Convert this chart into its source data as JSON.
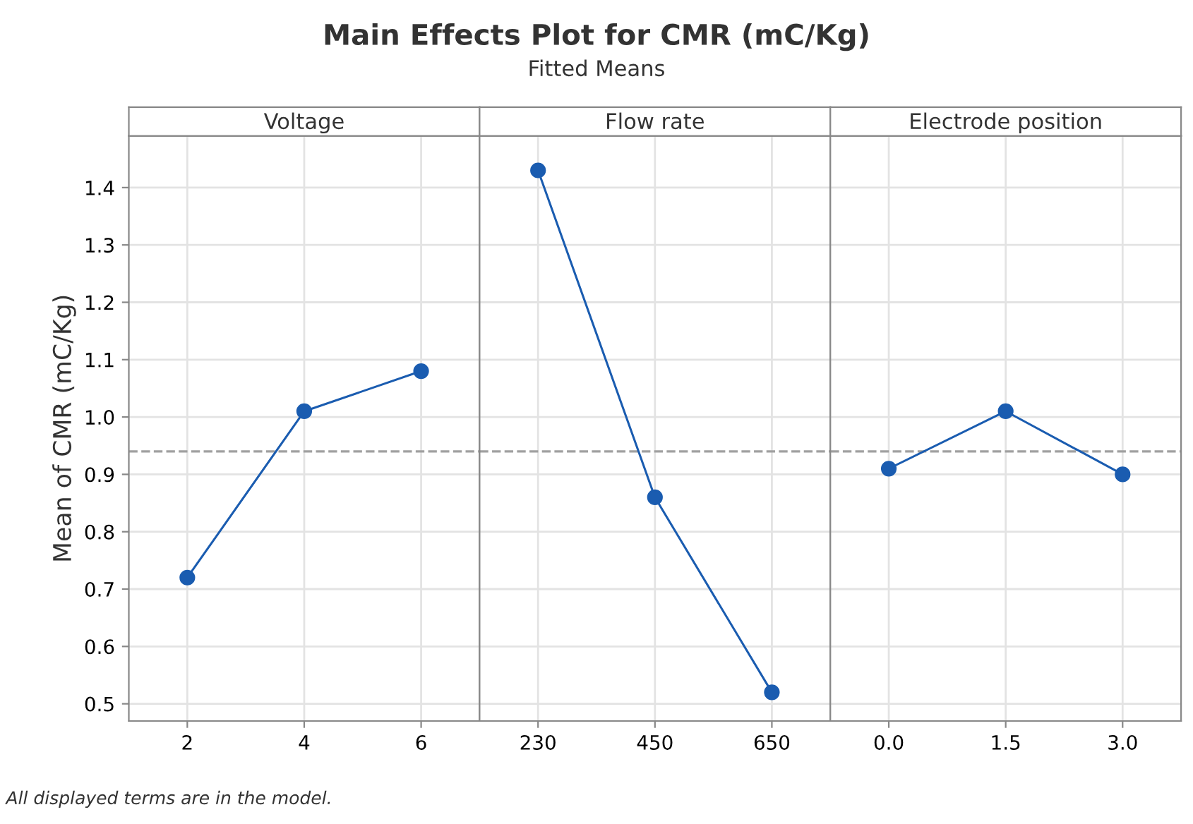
{
  "chart_data": [
    {
      "type": "line",
      "title": "Voltage",
      "ylabel": "Mean of CMR (mC/Kg)",
      "categories": [
        "2",
        "4",
        "6"
      ],
      "series": [
        {
          "color": "#1a5cb0",
          "values": [
            0.72,
            1.01,
            1.08
          ]
        }
      ],
      "ylim": [
        0.47,
        1.49
      ],
      "yticks": [
        0.5,
        0.6,
        0.7,
        0.8,
        0.9,
        {
          "value": 1.0,
          "label": "1.0"
        },
        1.1,
        1.2,
        1.3,
        1.4
      ],
      "ref_lines": [
        {
          "axis": "y",
          "value": 0.94,
          "color": "#a0a0a0",
          "line_style": "dashed"
        }
      ],
      "grid": true,
      "marker": "circle",
      "line_style": "solid",
      "annotations": [
        "Main Effects Plot for CMR (mC/Kg)",
        "Fitted Means",
        "All displayed terms are in the model."
      ]
    },
    {
      "type": "line",
      "title": "Flow rate",
      "categories": [
        "230",
        "450",
        "650"
      ],
      "series": [
        {
          "color": "#1a5cb0",
          "values": [
            1.43,
            0.86,
            0.52
          ]
        }
      ],
      "ylim": [
        0.47,
        1.49
      ],
      "yticks": [
        0.5,
        0.6,
        0.7,
        0.8,
        0.9,
        1.0,
        1.1,
        1.2,
        1.3,
        1.4
      ],
      "ref_lines": [
        {
          "axis": "y",
          "value": 0.94,
          "color": "#a0a0a0",
          "line_style": "dashed"
        }
      ],
      "grid": true,
      "marker": "circle",
      "line_style": "solid",
      "tick_labels": "x"
    },
    {
      "type": "line",
      "title": "Electrode position",
      "categories": [
        "0.0",
        "1.5",
        "3.0"
      ],
      "series": [
        {
          "color": "#1a5cb0",
          "values": [
            0.91,
            1.01,
            0.9
          ]
        }
      ],
      "ylim": [
        0.47,
        1.49
      ],
      "yticks": [
        0.5,
        0.6,
        0.7,
        0.8,
        0.9,
        1.0,
        1.1,
        1.2,
        1.3,
        1.4
      ],
      "ref_lines": [
        {
          "axis": "y",
          "value": 0.94,
          "color": "#a0a0a0",
          "line_style": "dashed"
        }
      ],
      "grid": true,
      "marker": "circle",
      "line_style": "solid",
      "tick_labels": "x"
    }
  ]
}
